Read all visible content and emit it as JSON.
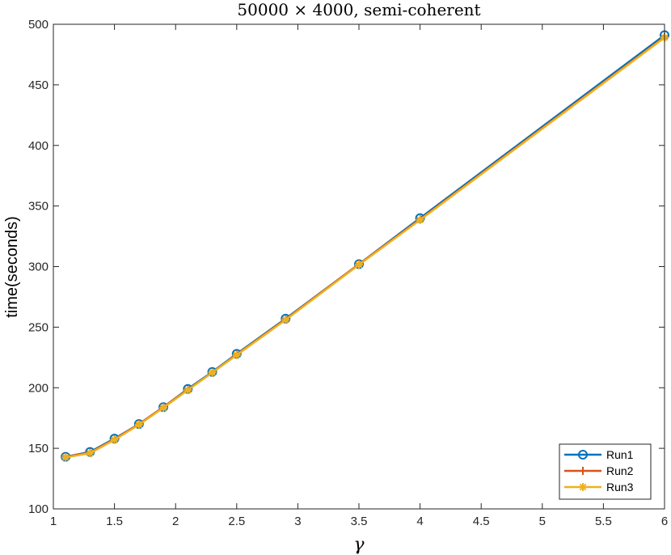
{
  "chart_data": {
    "type": "line",
    "title": "50000 × 4000, semi-coherent",
    "xlabel": "γ",
    "ylabel": "time(seconds)",
    "xlim": [
      1,
      6
    ],
    "ylim": [
      100,
      500
    ],
    "xticks": [
      "1",
      "1.5",
      "2",
      "2.5",
      "3",
      "3.5",
      "4",
      "4.5",
      "5",
      "5.5",
      "6"
    ],
    "yticks": [
      "100",
      "150",
      "200",
      "250",
      "300",
      "350",
      "400",
      "450",
      "500"
    ],
    "grid": false,
    "legend_position": "bottom-right",
    "x": [
      1.1,
      1.3,
      1.5,
      1.7,
      1.9,
      2.1,
      2.3,
      2.5,
      2.9,
      3.5,
      4.0,
      6.0
    ],
    "series": [
      {
        "name": "Run1",
        "color": "#0072BD",
        "marker": "circle",
        "values": [
          143,
          147,
          158,
          170,
          184,
          199,
          213,
          228,
          257,
          302,
          340,
          491
        ]
      },
      {
        "name": "Run2",
        "color": "#D95319",
        "marker": "plus",
        "values": [
          143,
          146.5,
          157.5,
          170,
          184,
          198.5,
          212.5,
          227.5,
          256.5,
          302,
          339,
          489.5
        ]
      },
      {
        "name": "Run3",
        "color": "#EDB120",
        "marker": "asterisk",
        "values": [
          142.5,
          146,
          157,
          169.5,
          183.5,
          198,
          212.5,
          227,
          256,
          301.5,
          338.5,
          489
        ]
      }
    ]
  }
}
